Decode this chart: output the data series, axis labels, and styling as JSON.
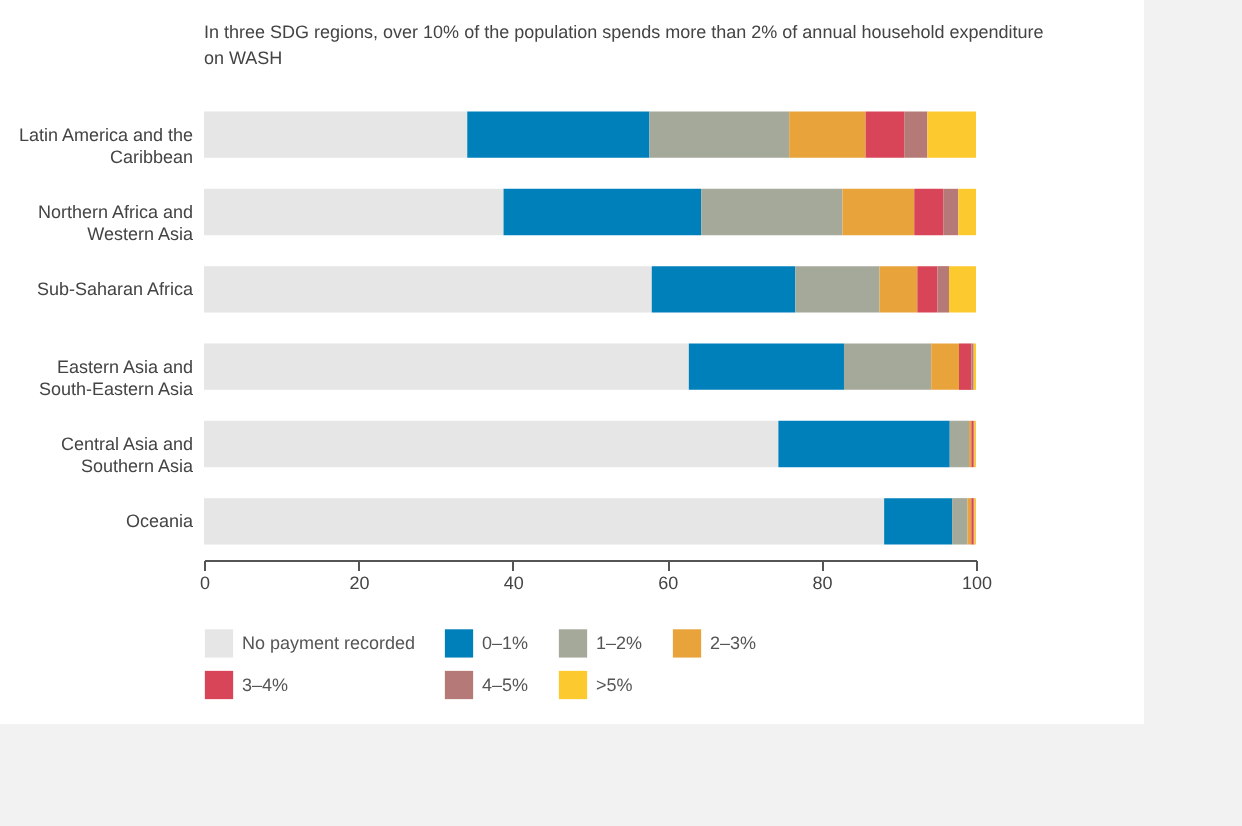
{
  "chart_data": {
    "type": "bar",
    "orientation": "horizontal",
    "stacked": true,
    "title": "In three SDG regions, over 10% of the population spends more than 2% of annual household expenditure on WASH",
    "categories": [
      "Latin America and the Caribbean",
      "Northern Africa and Western Asia",
      "Sub-Saharan Africa",
      "Eastern Asia and South-Eastern Asia",
      "Central Asia and Southern Asia",
      "Oceania"
    ],
    "series": [
      {
        "name": "No payment recorded",
        "color": "#e6e6e6",
        "values": [
          34.1,
          38.8,
          58.0,
          62.8,
          74.4,
          88.1
        ]
      },
      {
        "name": "0–1%",
        "color": "#0080bb",
        "values": [
          23.6,
          25.6,
          18.6,
          20.1,
          22.2,
          8.8
        ]
      },
      {
        "name": "1–2%",
        "color": "#a5a99a",
        "values": [
          18.1,
          18.3,
          10.9,
          11.3,
          2.5,
          2.0
        ]
      },
      {
        "name": "2–3%",
        "color": "#e8a33a",
        "values": [
          9.9,
          9.3,
          4.9,
          3.6,
          0.3,
          0.5
        ]
      },
      {
        "name": "3–4%",
        "color": "#d94558",
        "values": [
          5.0,
          3.8,
          2.6,
          1.6,
          0.3,
          0.3
        ]
      },
      {
        "name": "4–5%",
        "color": "#b57a78",
        "values": [
          3.0,
          1.9,
          1.5,
          0.3,
          0.1,
          0.1
        ]
      },
      {
        "name": ">5%",
        "color": "#fcc92e",
        "values": [
          6.3,
          2.3,
          3.5,
          0.3,
          0.2,
          0.2
        ]
      }
    ],
    "xlim": [
      0,
      100
    ],
    "xticks": [
      0,
      20,
      40,
      60,
      80,
      100
    ],
    "grid": false,
    "legend": "bottom"
  }
}
